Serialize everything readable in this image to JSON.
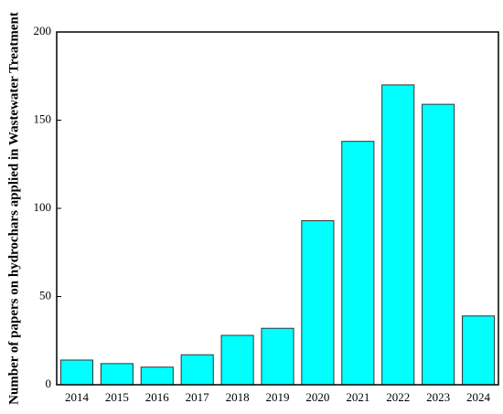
{
  "chart_data": {
    "type": "bar",
    "y_label": "Number of papers on hydrochars applied in Wastewater Treatment",
    "categories": [
      "2014",
      "2015",
      "2016",
      "2017",
      "2018",
      "2019",
      "2020",
      "2021",
      "2022",
      "2023",
      "2024"
    ],
    "values": [
      14,
      12,
      10,
      17,
      28,
      32,
      93,
      138,
      170,
      159,
      39
    ],
    "color": "#00ffff",
    "ylim": [
      0,
      200
    ],
    "yticks": [
      0,
      50,
      100,
      150,
      200
    ],
    "grid": false
  }
}
